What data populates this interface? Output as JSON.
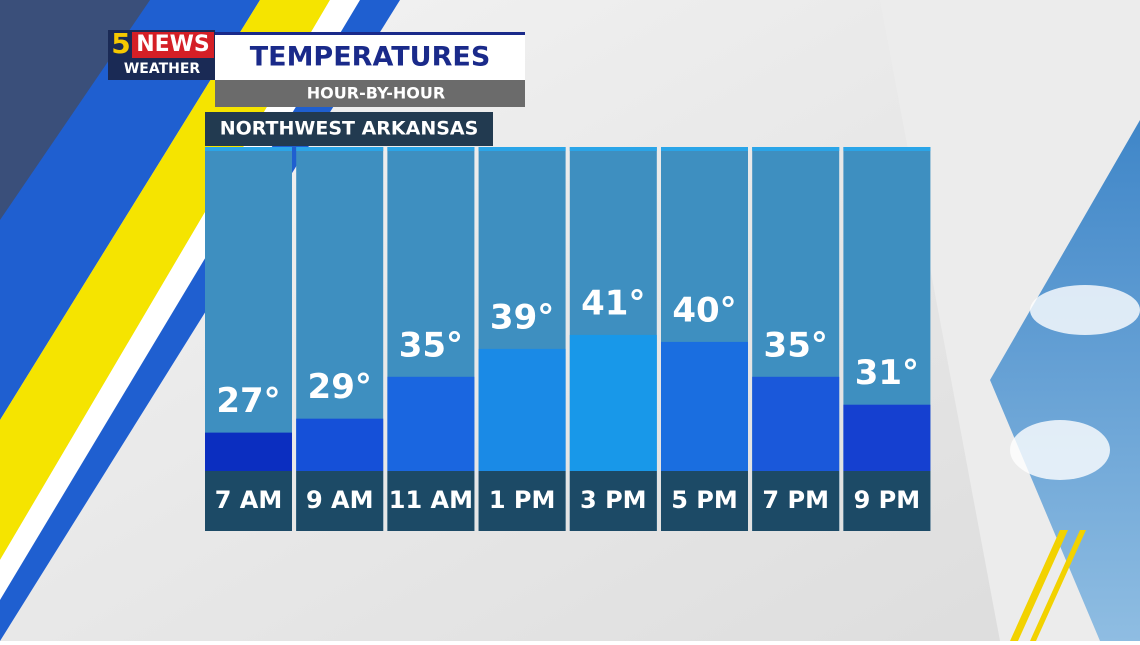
{
  "logo": {
    "number": "5",
    "name": "NEWS",
    "tag": "WEATHER"
  },
  "chart_data": {
    "type": "bar",
    "title": "TEMPERATURES",
    "subtitle": "HOUR-BY-HOUR",
    "location": "NORTHWEST ARKANSAS",
    "categories": [
      "7 AM",
      "9 AM",
      "11 AM",
      "1 PM",
      "3 PM",
      "5 PM",
      "7 PM",
      "9 PM"
    ],
    "values": [
      27,
      29,
      35,
      39,
      41,
      40,
      35,
      31
    ],
    "value_labels": [
      "27°",
      "29°",
      "35°",
      "39°",
      "41°",
      "40°",
      "35°",
      "31°"
    ],
    "colors": [
      "#0b2ec0",
      "#1550d8",
      "#1a66e0",
      "#1a8ae6",
      "#1898e9",
      "#1a6ee0",
      "#1a58da",
      "#1540d0"
    ],
    "ylim": [
      21.5,
      67.5
    ]
  }
}
